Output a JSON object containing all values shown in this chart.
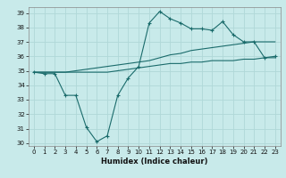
{
  "title": "",
  "xlabel": "Humidex (Indice chaleur)",
  "ylabel": "",
  "bg_color": "#c8eaea",
  "grid_color": "#b0d8d8",
  "line_color": "#1a6b6b",
  "xlim": [
    -0.5,
    23.5
  ],
  "ylim": [
    29.8,
    39.4
  ],
  "yticks": [
    30,
    31,
    32,
    33,
    34,
    35,
    36,
    37,
    38,
    39
  ],
  "xticks": [
    0,
    1,
    2,
    3,
    4,
    5,
    6,
    7,
    8,
    9,
    10,
    11,
    12,
    13,
    14,
    15,
    16,
    17,
    18,
    19,
    20,
    21,
    22,
    23
  ],
  "line1_x": [
    0,
    1,
    2,
    3,
    4,
    5,
    6,
    7,
    8,
    9,
    10,
    11,
    12,
    13,
    14,
    15,
    16,
    17,
    18,
    19,
    20,
    21,
    22,
    23
  ],
  "line1_y": [
    34.9,
    34.8,
    34.8,
    33.3,
    33.3,
    31.1,
    30.1,
    30.5,
    33.3,
    34.5,
    35.3,
    38.3,
    39.1,
    38.6,
    38.3,
    37.9,
    37.9,
    37.8,
    38.4,
    37.5,
    37.0,
    37.0,
    35.9,
    36.0
  ],
  "line2_x": [
    0,
    1,
    2,
    3,
    4,
    5,
    6,
    7,
    8,
    9,
    10,
    11,
    12,
    13,
    14,
    15,
    16,
    17,
    18,
    19,
    20,
    21,
    22,
    23
  ],
  "line2_y": [
    34.9,
    34.9,
    34.9,
    34.9,
    35.0,
    35.1,
    35.2,
    35.3,
    35.4,
    35.5,
    35.6,
    35.7,
    35.9,
    36.1,
    36.2,
    36.4,
    36.5,
    36.6,
    36.7,
    36.8,
    36.9,
    37.0,
    37.0,
    37.0
  ],
  "line3_x": [
    0,
    1,
    2,
    3,
    4,
    5,
    6,
    7,
    8,
    9,
    10,
    11,
    12,
    13,
    14,
    15,
    16,
    17,
    18,
    19,
    20,
    21,
    22,
    23
  ],
  "line3_y": [
    34.9,
    34.9,
    34.9,
    34.9,
    34.9,
    34.9,
    34.9,
    34.9,
    35.0,
    35.1,
    35.2,
    35.3,
    35.4,
    35.5,
    35.5,
    35.6,
    35.6,
    35.7,
    35.7,
    35.7,
    35.8,
    35.8,
    35.9,
    35.9
  ],
  "tick_fontsize": 5.0,
  "xlabel_fontsize": 6.0
}
